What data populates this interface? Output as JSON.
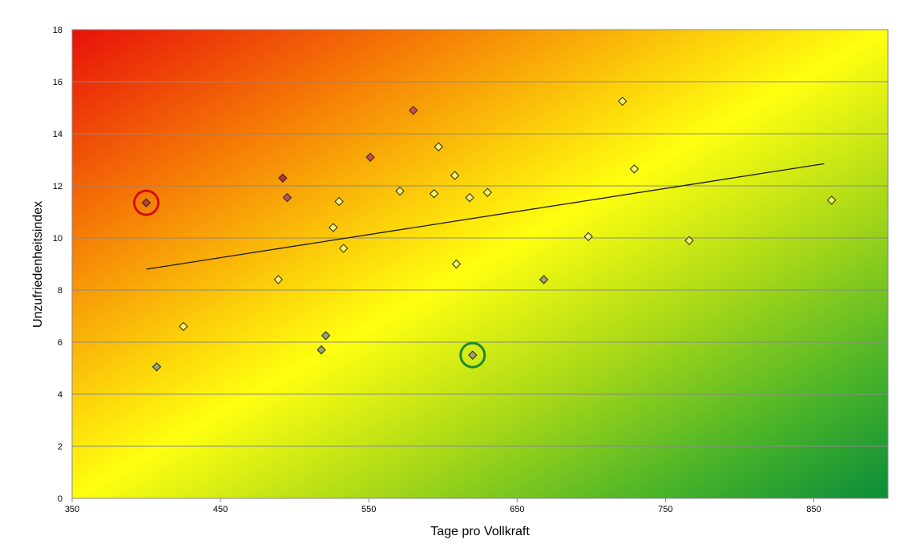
{
  "chart_data": {
    "type": "scatter",
    "title": "",
    "xlabel": "Tage pro Vollkraft",
    "ylabel": "Unzufriedenheitsindex",
    "xlim": [
      350,
      900
    ],
    "ylim": [
      0,
      18
    ],
    "x_ticks": [
      "350",
      "450",
      "550",
      "650",
      "750",
      "850"
    ],
    "y_ticks": [
      "0",
      "2",
      "4",
      "6",
      "8",
      "10",
      "12",
      "14",
      "16",
      "18"
    ],
    "grid": "horizontal",
    "background": "gradient red (top-left) through yellow to green (bottom-right)",
    "points": [
      {
        "x": 400,
        "y": 11.35,
        "color": "#c0392b"
      },
      {
        "x": 407,
        "y": 5.05,
        "color": "#9aa56a"
      },
      {
        "x": 425,
        "y": 6.6,
        "color": "#f4f46a"
      },
      {
        "x": 489,
        "y": 8.4,
        "color": "#f4f46a"
      },
      {
        "x": 492,
        "y": 12.3,
        "color": "#b8332b"
      },
      {
        "x": 495,
        "y": 11.55,
        "color": "#c9504a"
      },
      {
        "x": 518,
        "y": 5.7,
        "color": "#9aa56a"
      },
      {
        "x": 521,
        "y": 6.25,
        "color": "#9aa56a"
      },
      {
        "x": 526,
        "y": 10.4,
        "color": "#f4f46a"
      },
      {
        "x": 530,
        "y": 11.4,
        "color": "#f4f46a"
      },
      {
        "x": 533,
        "y": 9.6,
        "color": "#f4f46a"
      },
      {
        "x": 551,
        "y": 13.1,
        "color": "#c9504a"
      },
      {
        "x": 571,
        "y": 11.8,
        "color": "#f4f46a"
      },
      {
        "x": 580,
        "y": 14.9,
        "color": "#c9504a"
      },
      {
        "x": 594,
        "y": 11.7,
        "color": "#f4f46a"
      },
      {
        "x": 597,
        "y": 13.5,
        "color": "#f4f46a"
      },
      {
        "x": 608,
        "y": 12.4,
        "color": "#f4f46a"
      },
      {
        "x": 609,
        "y": 9.0,
        "color": "#f4f46a"
      },
      {
        "x": 618,
        "y": 11.55,
        "color": "#f4f46a"
      },
      {
        "x": 620,
        "y": 5.5,
        "color": "#9aa56a"
      },
      {
        "x": 630,
        "y": 11.75,
        "color": "#f4f46a"
      },
      {
        "x": 668,
        "y": 8.4,
        "color": "#9aa56a"
      },
      {
        "x": 698,
        "y": 10.05,
        "color": "#f4f46a"
      },
      {
        "x": 721,
        "y": 15.25,
        "color": "#f4f46a"
      },
      {
        "x": 729,
        "y": 12.65,
        "color": "#f4f46a"
      },
      {
        "x": 766,
        "y": 9.9,
        "color": "#f4f46a"
      },
      {
        "x": 862,
        "y": 11.45,
        "color": "#f4f46a"
      }
    ],
    "trendline": {
      "x": [
        400,
        857
      ],
      "y": [
        8.8,
        12.85
      ]
    },
    "highlights": [
      {
        "x": 400,
        "y": 11.35,
        "color": "#d01010"
      },
      {
        "x": 620,
        "y": 5.5,
        "color": "#1a8a2a"
      }
    ]
  }
}
